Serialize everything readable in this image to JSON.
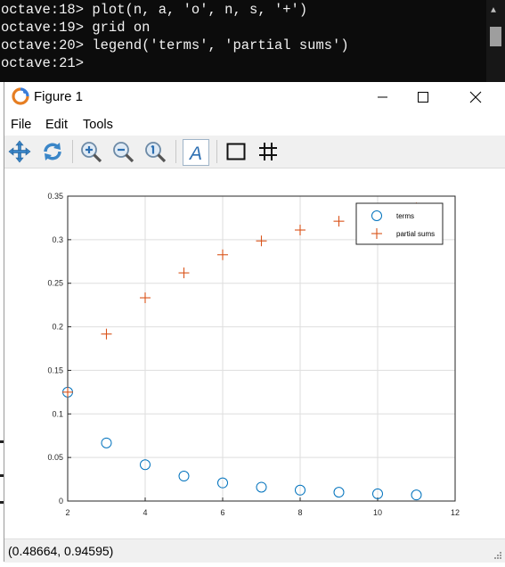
{
  "terminal": {
    "lines": [
      "octave:18> plot(n, a, 'o', n, s, '+')",
      "octave:19> grid on",
      "octave:20> legend('terms', 'partial sums')",
      "octave:21> "
    ]
  },
  "window": {
    "title": "Figure 1",
    "app_icon": "octave-logo-icon"
  },
  "menubar": {
    "items": [
      "File",
      "Edit",
      "Tools"
    ]
  },
  "toolbar": {
    "icons": [
      "pan-icon",
      "rotate-icon",
      "zoom-in-icon",
      "zoom-out-icon",
      "auto-axes-icon",
      "insert-text-icon",
      "box-icon",
      "grid-icon"
    ]
  },
  "status": {
    "coordinates": "(0.48664, 0.94595)"
  },
  "colors": {
    "terms": "#0072bd",
    "partial_sums": "#d95319",
    "terminal_bg": "#0c0c0c",
    "grid": "#dedede"
  },
  "chart_data": {
    "type": "scatter",
    "title": "",
    "xlabel": "",
    "ylabel": "",
    "xlim": [
      2,
      12
    ],
    "ylim": [
      0,
      0.35
    ],
    "xticks": [
      "2",
      "4",
      "6",
      "8",
      "10",
      "12"
    ],
    "yticks": [
      "0",
      "0.05",
      "0.1",
      "0.15",
      "0.2",
      "0.25",
      "0.3",
      "0.35"
    ],
    "grid": true,
    "legend_position": "top-right",
    "series": [
      {
        "name": "terms",
        "marker": "o",
        "x": [
          2,
          3,
          4,
          5,
          6,
          7,
          8,
          9,
          10,
          11
        ],
        "y": [
          0.125,
          0.0667,
          0.0417,
          0.0286,
          0.0208,
          0.0159,
          0.0125,
          0.0101,
          0.0083,
          0.007
        ]
      },
      {
        "name": "partial sums",
        "marker": "+",
        "x": [
          2,
          3,
          4,
          5,
          6,
          7,
          8,
          9,
          10,
          11
        ],
        "y": [
          0.125,
          0.1917,
          0.2333,
          0.2619,
          0.2827,
          0.2986,
          0.3111,
          0.3212,
          0.3295,
          0.3365
        ]
      }
    ]
  }
}
